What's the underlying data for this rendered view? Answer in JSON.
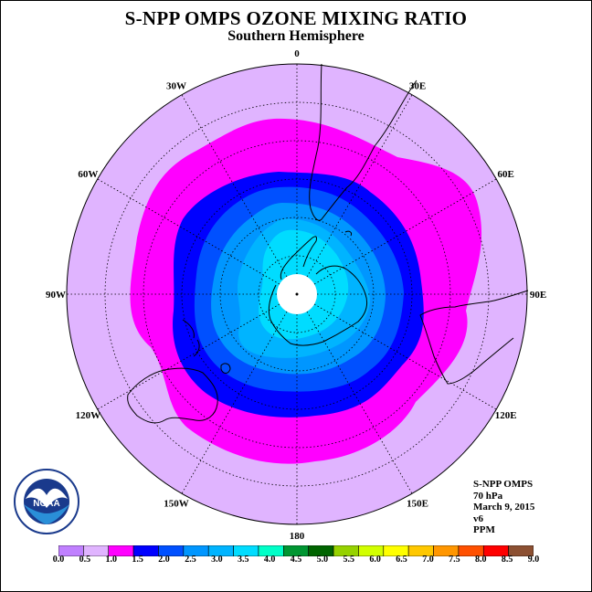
{
  "title": "S-NPP OMPS OZONE MIXING RATIO",
  "subtitle": "Southern Hemisphere",
  "longitude_labels": [
    {
      "text": "90W",
      "lon": -90
    },
    {
      "text": "60W",
      "lon": -60
    },
    {
      "text": "30W",
      "lon": -30
    },
    {
      "text": "0",
      "lon": 0
    },
    {
      "text": "30E",
      "lon": 30
    },
    {
      "text": "60E",
      "lon": 60
    },
    {
      "text": "90E",
      "lon": 90
    },
    {
      "text": "120E",
      "lon": 120
    },
    {
      "text": "150E",
      "lon": 150
    },
    {
      "text": "180",
      "lon": 180
    },
    {
      "text": "150W",
      "lon": -150
    },
    {
      "text": "120W",
      "lon": -120
    }
  ],
  "info": {
    "instrument": "S-NPP OMPS",
    "level": "70 hPa",
    "date": "March 9, 2015",
    "version": "v6",
    "units": "PPM"
  },
  "logo": {
    "text": "NOAA"
  },
  "colorbar": {
    "ticks": [
      "0.0",
      "0.5",
      "1.0",
      "1.5",
      "2.0",
      "2.5",
      "3.0",
      "3.5",
      "4.0",
      "4.5",
      "5.0",
      "5.5",
      "6.0",
      "6.5",
      "7.0",
      "7.5",
      "8.0",
      "8.5",
      "9.0"
    ],
    "colors": [
      "#c080ff",
      "#e0b4ff",
      "#ff00ff",
      "#0000ff",
      "#0050ff",
      "#0096ff",
      "#00b4ff",
      "#00dcff",
      "#00ffc8",
      "#009632",
      "#006400",
      "#96d200",
      "#d2ff00",
      "#ffff00",
      "#ffc800",
      "#ff9600",
      "#ff5000",
      "#ff0000",
      "#8c5032"
    ]
  },
  "chart_data": {
    "type": "polar-stereographic contour map",
    "hemisphere": "Southern",
    "variable": "ozone mixing ratio",
    "units": "PPM",
    "pressure_level": "70 hPa",
    "date": "March 9, 2015",
    "contour_levels": [
      0.0,
      0.5,
      1.0,
      1.5,
      2.0,
      2.5,
      3.0,
      3.5,
      4.0,
      4.5,
      5.0,
      5.5,
      6.0,
      6.5,
      7.0,
      7.5,
      8.0,
      8.5,
      9.0
    ],
    "bands": [
      {
        "range": [
          0.5,
          1.0
        ],
        "color": "#e0b4ff"
      },
      {
        "range": [
          1.0,
          1.5
        ],
        "color": "#ff00ff"
      },
      {
        "range": [
          1.5,
          2.0
        ],
        "color": "#0000ff"
      },
      {
        "range": [
          2.0,
          2.5
        ],
        "color": "#0050ff"
      },
      {
        "range": [
          2.5,
          3.0
        ],
        "color": "#0096ff"
      },
      {
        "range": [
          3.0,
          3.5
        ],
        "color": "#00b4ff"
      },
      {
        "range": [
          3.5,
          4.0
        ],
        "color": "#00dcff"
      }
    ],
    "pole_region": "no data"
  }
}
